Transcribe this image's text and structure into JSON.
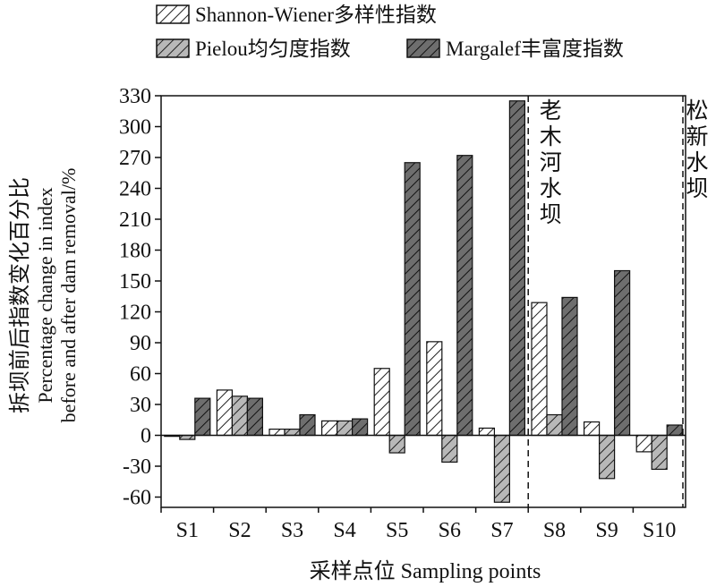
{
  "chart_data": {
    "type": "bar",
    "categories": [
      "S1",
      "S2",
      "S3",
      "S4",
      "S5",
      "S6",
      "S7",
      "S8",
      "S9",
      "S10"
    ],
    "series": [
      {
        "name": "Shannon-Wiener多样性指数",
        "values": [
          -1,
          44,
          6,
          14,
          65,
          91,
          7,
          129,
          13,
          -16
        ],
        "pattern": "hatch-white"
      },
      {
        "name": "Pielou均匀度指数",
        "values": [
          -4,
          38,
          6,
          14,
          -17,
          -26,
          -65,
          20,
          -42,
          -33
        ],
        "pattern": "hatch-light"
      },
      {
        "name": "Margalef丰富度指数",
        "values": [
          36,
          36,
          20,
          16,
          265,
          272,
          325,
          134,
          160,
          10
        ],
        "pattern": "hatch-dark"
      }
    ],
    "ylim": [
      -70,
      330
    ],
    "yticks": [
      330,
      300,
      270,
      240,
      210,
      180,
      150,
      120,
      90,
      60,
      30,
      0,
      -30,
      -60
    ],
    "ylabel_cn": "拆坝前后指数变化百分比",
    "ylabel_en_line1": "Percentage change in index",
    "ylabel_en_line2": "before and after dam removal/%",
    "xlabel": "采样点位 Sampling points",
    "legend_position": "top",
    "grid": false,
    "annotations": [
      {
        "text": "老木河水坝",
        "after_category": "S7"
      },
      {
        "text": "松新水坝",
        "after_category": "S10"
      }
    ]
  }
}
